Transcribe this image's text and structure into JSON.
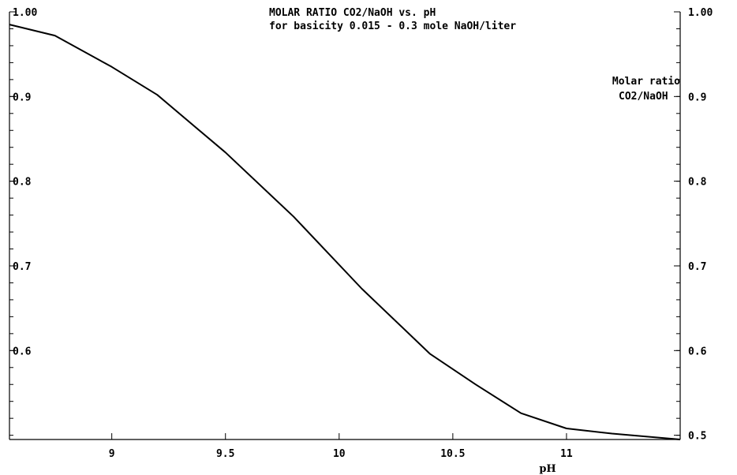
{
  "chart_data": {
    "type": "line",
    "title_line1": "MOLAR RATIO CO2/NaOH vs. pH",
    "title_line2": "for basicity 0.015 - 0.3 mole NaOH/liter",
    "xlabel": "pH",
    "ylabel_right_line1": "Molar ratio",
    "ylabel_right_line2": "CO2/NaOH",
    "xlim": [
      8.55,
      11.5
    ],
    "ylim": [
      0.495,
      1.0
    ],
    "x_ticks": [
      9,
      9.5,
      10,
      10.5,
      11
    ],
    "x_tick_labels": [
      "9",
      "9.5",
      "10",
      "10.5",
      "11"
    ],
    "y_ticks_left": [
      1.0,
      0.9,
      0.8,
      0.7,
      0.6
    ],
    "y_tick_labels_left": [
      "1.00",
      "0.9",
      "0.8",
      "0.7",
      "0.6"
    ],
    "y_ticks_right": [
      1.0,
      0.9,
      0.8,
      0.7,
      0.6,
      0.5
    ],
    "y_tick_labels_right": [
      "1.00",
      "0.9",
      "0.8",
      "0.7",
      "0.6",
      "0.5"
    ],
    "y_minor_step": 0.02,
    "grid": false,
    "series": [
      {
        "x": [
          8.55,
          8.75,
          9.0,
          9.2,
          9.5,
          9.8,
          10.1,
          10.4,
          10.6,
          10.8,
          11.0,
          11.2,
          11.5
        ],
        "y": [
          0.985,
          0.972,
          0.935,
          0.902,
          0.834,
          0.758,
          0.673,
          0.596,
          0.56,
          0.526,
          0.508,
          0.502,
          0.495
        ]
      }
    ]
  }
}
